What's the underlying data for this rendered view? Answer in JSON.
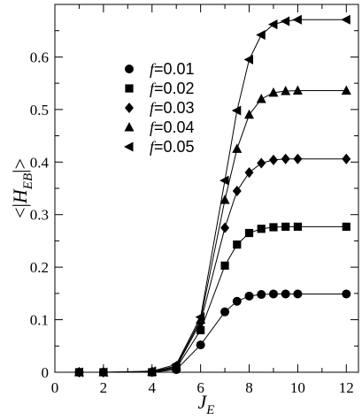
{
  "chart_data": {
    "type": "line",
    "xlabel": "J_E",
    "ylabel": "<|H_EB|>",
    "xlim": [
      0,
      12.5
    ],
    "ylim": [
      0,
      0.7
    ],
    "x_ticks": [
      0,
      2,
      4,
      6,
      8,
      10,
      12
    ],
    "y_ticks": [
      0,
      0.1,
      0.2,
      0.3,
      0.4,
      0.5,
      0.6
    ],
    "x_tick_labels": [
      "0",
      "2",
      "4",
      "6",
      "8",
      "10",
      "12"
    ],
    "y_tick_labels": [
      "0",
      "0.1",
      "0.2",
      "0.3",
      "0.4",
      "0.5",
      "0.6"
    ],
    "legend_position": "upper-left",
    "x": [
      1,
      2,
      4,
      5,
      6,
      7,
      7.5,
      8,
      8.5,
      9,
      9.5,
      10,
      12
    ],
    "series": [
      {
        "name": "f=0.01",
        "prefix": "f",
        "value_text": "=0.01",
        "marker": "circle",
        "values": [
          0,
          0,
          0,
          0.005,
          0.052,
          0.115,
          0.135,
          0.145,
          0.148,
          0.149,
          0.149,
          0.149,
          0.149
        ]
      },
      {
        "name": "f=0.02",
        "prefix": "f",
        "value_text": "=0.02",
        "marker": "square",
        "values": [
          0,
          0,
          0,
          0.008,
          0.08,
          0.203,
          0.243,
          0.265,
          0.273,
          0.276,
          0.277,
          0.277,
          0.277
        ]
      },
      {
        "name": "f=0.03",
        "prefix": "f",
        "value_text": "=0.03",
        "marker": "diamond",
        "values": [
          0,
          0,
          0.001,
          0.01,
          0.095,
          0.275,
          0.345,
          0.38,
          0.398,
          0.404,
          0.406,
          0.406,
          0.406
        ]
      },
      {
        "name": "f=0.04",
        "prefix": "f",
        "value_text": "=0.04",
        "marker": "triangle-up",
        "values": [
          0,
          0,
          0.001,
          0.012,
          0.1,
          0.328,
          0.425,
          0.49,
          0.52,
          0.532,
          0.535,
          0.536,
          0.536
        ]
      },
      {
        "name": "f=0.05",
        "prefix": "f",
        "value_text": "=0.05",
        "marker": "triangle-left",
        "values": [
          0,
          0,
          0.002,
          0.015,
          0.105,
          0.365,
          0.498,
          0.595,
          0.642,
          0.662,
          0.668,
          0.671,
          0.671
        ]
      }
    ]
  }
}
